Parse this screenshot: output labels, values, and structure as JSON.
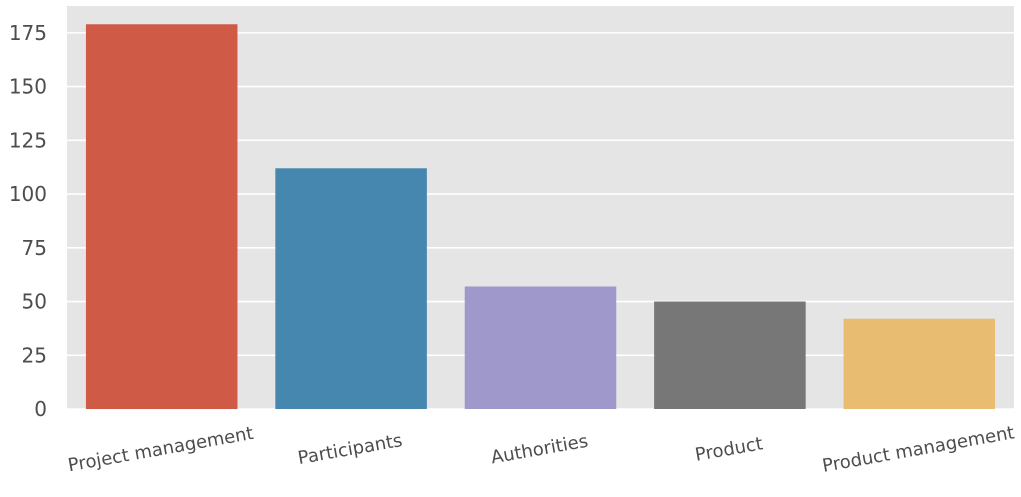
{
  "chart_data": {
    "type": "bar",
    "categories": [
      "Project management",
      "Participants",
      "Authorities",
      "Product",
      "Product management"
    ],
    "values": [
      179,
      112,
      57,
      50,
      42
    ],
    "colors": [
      "#cf5a45",
      "#4587ae",
      "#9f98cb",
      "#777777",
      "#e8bd72"
    ],
    "ylim": [
      0,
      187.5
    ],
    "yticks": [
      0,
      25,
      50,
      75,
      100,
      125,
      150,
      175
    ],
    "grid": true,
    "title": "",
    "xlabel": "",
    "ylabel": ""
  }
}
